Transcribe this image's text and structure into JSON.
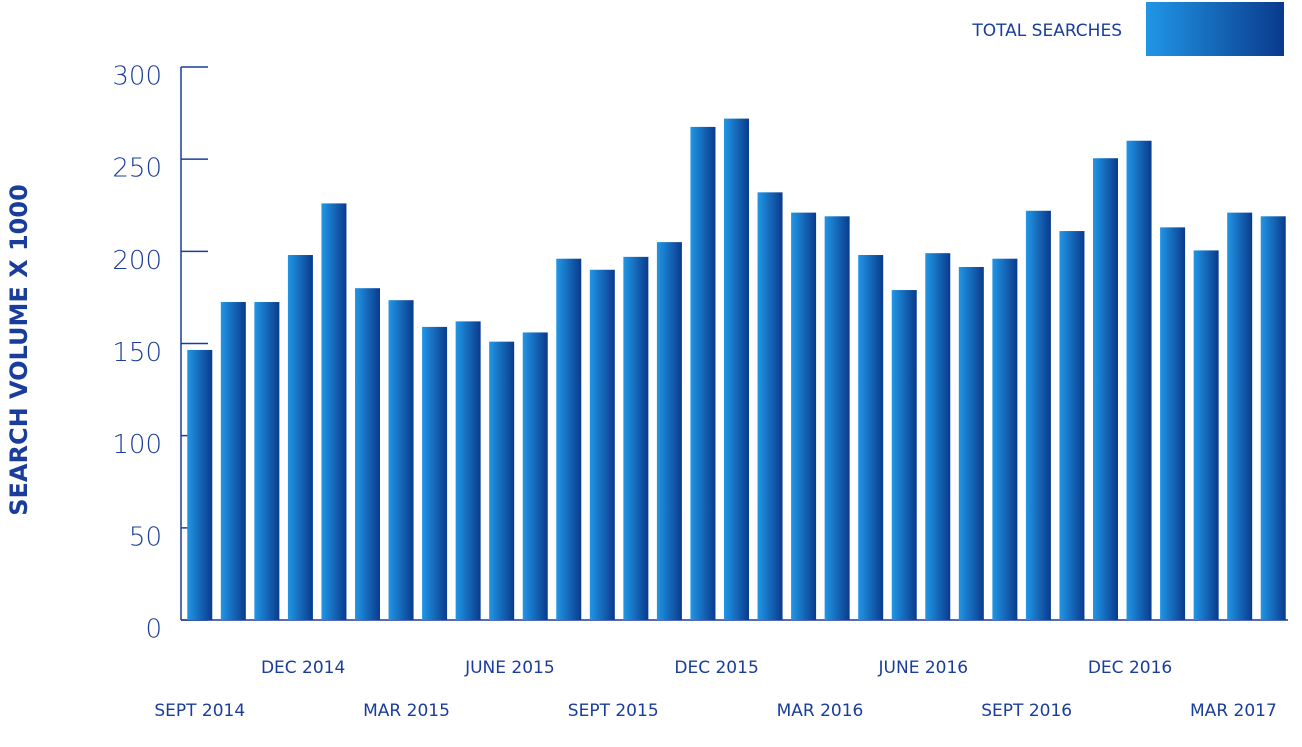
{
  "chart_data": {
    "type": "bar",
    "y_axis_label": "SEARCH VOLUME X 1000",
    "categories": [
      "SEPT 2014",
      null,
      null,
      "DEC 2014",
      null,
      null,
      "MAR 2015",
      null,
      null,
      "JUNE 2015",
      null,
      null,
      "SEPT 2015",
      null,
      null,
      "DEC 2015",
      null,
      null,
      "MAR 2016",
      null,
      null,
      "JUNE 2016",
      null,
      null,
      "SEPT 2016",
      null,
      null,
      "DEC 2016",
      null,
      null,
      "MAR 2017",
      null,
      null
    ],
    "series": [
      {
        "name": "TOTAL SEARCHES",
        "color": [
          "#2196e6",
          "#0a3a8c"
        ],
        "values": [
          146.5,
          172.5,
          172.5,
          198,
          226,
          180,
          173.5,
          159,
          162,
          151,
          156,
          196,
          190,
          197,
          205,
          267.5,
          272,
          232,
          221,
          219,
          198,
          179,
          199,
          191.5,
          196,
          222,
          211,
          250.5,
          260,
          213,
          200.5,
          221,
          219
        ]
      }
    ],
    "ylim": [
      0,
      300
    ],
    "yticks": [
      0,
      50,
      100,
      150,
      200,
      250,
      300
    ],
    "legend": "top-right"
  }
}
